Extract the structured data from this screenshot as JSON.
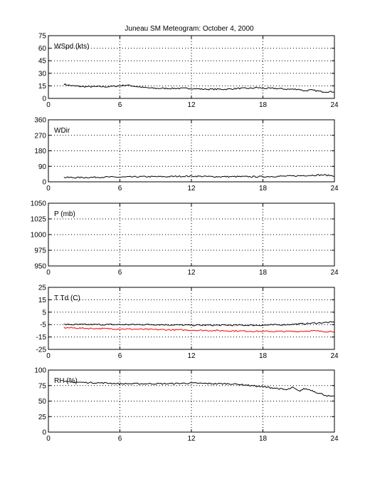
{
  "title": "Juneau SM Meteogram:    October  4, 2000",
  "colors": {
    "background": "#ffffff",
    "axes": "#000000",
    "grid": "#000000",
    "dewpoint": "#ff0000",
    "line": "#000000"
  },
  "chart_data": [
    {
      "type": "line",
      "label": "WSpd (kts)",
      "xlim": [
        0,
        24
      ],
      "ylim": [
        0,
        75
      ],
      "xticks": [
        0,
        6,
        12,
        18,
        24
      ],
      "yticks": [
        0,
        15,
        30,
        45,
        60,
        75
      ],
      "grid": true,
      "series": [
        {
          "color": "#000000",
          "x": [
            1.3,
            2,
            3,
            4,
            5,
            6,
            6.5,
            7,
            8,
            9,
            10,
            11,
            12,
            13,
            14,
            15,
            16,
            17,
            17.5,
            18,
            19,
            20,
            21,
            21.5,
            22,
            23,
            24
          ],
          "values": [
            17,
            15,
            14,
            14,
            14,
            15,
            16,
            15,
            13,
            12,
            12,
            12,
            12,
            11,
            11,
            11,
            12,
            12,
            13,
            12,
            12,
            11,
            11,
            9,
            10,
            8,
            8
          ]
        }
      ]
    },
    {
      "type": "line",
      "label": "WDir",
      "xlim": [
        0,
        24
      ],
      "ylim": [
        0,
        360
      ],
      "xticks": [
        0,
        6,
        12,
        18,
        24
      ],
      "yticks": [
        0,
        90,
        180,
        270,
        360
      ],
      "grid": true,
      "series": [
        {
          "color": "#000000",
          "x": [
            1.3,
            3,
            5,
            6,
            8,
            10,
            11,
            12,
            14,
            16,
            18,
            20,
            21,
            22,
            23,
            24
          ],
          "values": [
            25,
            25,
            28,
            27,
            30,
            30,
            32,
            33,
            30,
            30,
            30,
            33,
            35,
            38,
            40,
            35
          ]
        }
      ]
    },
    {
      "type": "line",
      "label": "P (mb)",
      "xlim": [
        0,
        24
      ],
      "ylim": [
        950,
        1050
      ],
      "xticks": [
        0,
        6,
        12,
        18,
        24
      ],
      "yticks": [
        950,
        975,
        1000,
        1025,
        1050
      ],
      "grid": true,
      "series": []
    },
    {
      "type": "line",
      "label": "T Td (C)",
      "xlim": [
        0,
        24
      ],
      "ylim": [
        -25,
        25
      ],
      "xticks": [
        0,
        6,
        12,
        18,
        24
      ],
      "yticks": [
        -25,
        -15,
        -5,
        5,
        15,
        25
      ],
      "grid": true,
      "series": [
        {
          "color": "#000000",
          "x": [
            1.3,
            3,
            6,
            9,
            12,
            15,
            18,
            20,
            21,
            22,
            23,
            24
          ],
          "values": [
            -5,
            -5,
            -5,
            -5,
            -5.5,
            -5.5,
            -5.5,
            -5,
            -4.5,
            -4,
            -3.5,
            -3
          ]
        },
        {
          "color": "#ff0000",
          "x": [
            1.3,
            3,
            6,
            9,
            12,
            15,
            18,
            20,
            21,
            22,
            23,
            24
          ],
          "values": [
            -7.5,
            -8,
            -8.5,
            -9,
            -9.5,
            -10,
            -10.5,
            -10.5,
            -10.5,
            -10,
            -10.5,
            -10.5
          ]
        }
      ]
    },
    {
      "type": "line",
      "label": "RH (%)",
      "xlim": [
        0,
        24
      ],
      "ylim": [
        0,
        100
      ],
      "xticks": [
        0,
        6,
        12,
        18,
        24
      ],
      "yticks": [
        0,
        25,
        50,
        75,
        100
      ],
      "grid": true,
      "series": [
        {
          "color": "#000000",
          "x": [
            1.3,
            3,
            5,
            6,
            8,
            10,
            12,
            14,
            15,
            16,
            17,
            18,
            19,
            20,
            20.5,
            21,
            21.5,
            22,
            22.5,
            23,
            23.5,
            24
          ],
          "values": [
            81,
            80,
            79,
            78,
            78,
            78,
            79,
            78,
            78,
            77,
            75,
            73,
            71,
            68,
            72,
            66,
            70,
            68,
            64,
            61,
            58,
            57
          ]
        }
      ]
    }
  ]
}
